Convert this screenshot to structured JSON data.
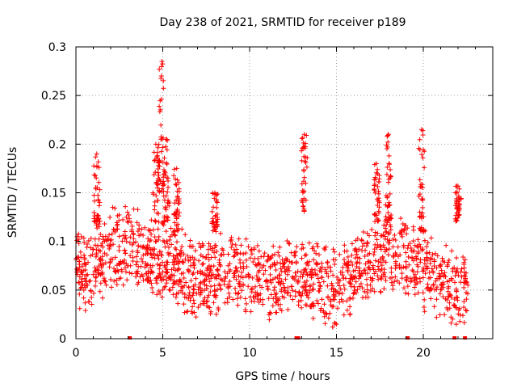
{
  "chart_data": {
    "type": "scatter",
    "title": "Day 238 of 2021, SRMTID for receiver p189",
    "xlabel": "GPS time / hours",
    "ylabel": "SRMTID / TECUs",
    "xlim": [
      0,
      24
    ],
    "ylim": [
      0,
      0.3
    ],
    "x_ticks": [
      0,
      5,
      10,
      15,
      20
    ],
    "x_tick_labels": [
      "0",
      "5",
      "10",
      "15",
      "20"
    ],
    "y_ticks": [
      0,
      0.05,
      0.1,
      0.15,
      0.2,
      0.25,
      0.3
    ],
    "y_tick_labels": [
      "0",
      "0.05",
      "0.1",
      "0.15",
      "0.2",
      "0.25",
      "0.3"
    ],
    "grid": true,
    "marker": "+",
    "color": "#ff0000",
    "baseline_trend": [
      [
        0.0,
        0.07
      ],
      [
        1.0,
        0.07
      ],
      [
        2.0,
        0.09
      ],
      [
        3.0,
        0.095
      ],
      [
        4.0,
        0.085
      ],
      [
        5.0,
        0.08
      ],
      [
        6.0,
        0.07
      ],
      [
        7.0,
        0.06
      ],
      [
        8.0,
        0.065
      ],
      [
        9.0,
        0.07
      ],
      [
        10.0,
        0.065
      ],
      [
        11.0,
        0.06
      ],
      [
        12.0,
        0.06
      ],
      [
        13.0,
        0.065
      ],
      [
        14.0,
        0.055
      ],
      [
        15.0,
        0.05
      ],
      [
        16.0,
        0.065
      ],
      [
        17.0,
        0.08
      ],
      [
        18.0,
        0.09
      ],
      [
        19.0,
        0.085
      ],
      [
        20.0,
        0.07
      ],
      [
        21.0,
        0.055
      ],
      [
        22.0,
        0.05
      ],
      [
        22.5,
        0.055
      ]
    ],
    "peak_clusters": [
      {
        "x": 4.95,
        "y_low": 0.15,
        "y_high": 0.285
      },
      {
        "x": 4.6,
        "y_low": 0.12,
        "y_high": 0.2
      },
      {
        "x": 5.2,
        "y_low": 0.12,
        "y_high": 0.205
      },
      {
        "x": 5.8,
        "y_low": 0.11,
        "y_high": 0.175
      },
      {
        "x": 1.2,
        "y_low": 0.12,
        "y_high": 0.19
      },
      {
        "x": 13.15,
        "y_low": 0.13,
        "y_high": 0.21
      },
      {
        "x": 18.0,
        "y_low": 0.12,
        "y_high": 0.21
      },
      {
        "x": 19.9,
        "y_low": 0.11,
        "y_high": 0.215
      },
      {
        "x": 17.3,
        "y_low": 0.12,
        "y_high": 0.18
      },
      {
        "x": 8.0,
        "y_low": 0.11,
        "y_high": 0.15
      },
      {
        "x": 22.0,
        "y_low": 0.12,
        "y_high": 0.157
      }
    ],
    "data_gap_markers": [
      3.1,
      12.7,
      12.8,
      19.1,
      21.8,
      22.4
    ]
  }
}
